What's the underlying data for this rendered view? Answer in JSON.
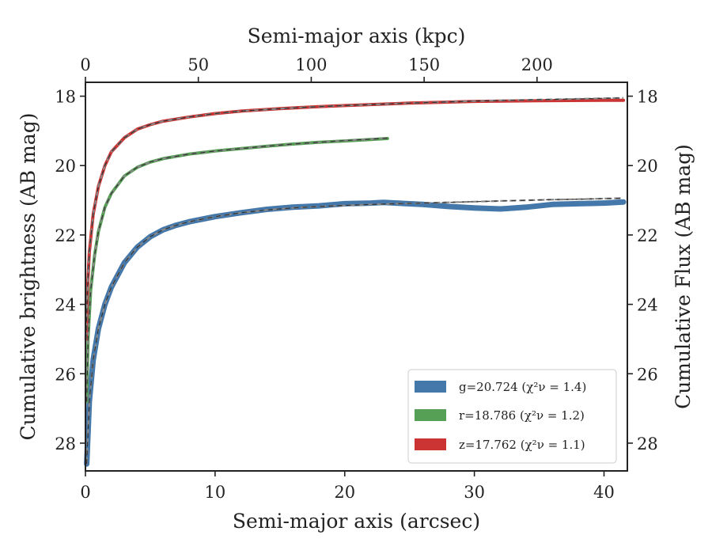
{
  "chart_data": {
    "type": "line",
    "xlabel": "Semi-major axis (arcsec)",
    "ylabel": "Cumulative brightness (AB mag)",
    "x2label": "Semi-major axis (kpc)",
    "y2label": "Cumulative Flux (AB mag)",
    "xlim": [
      0,
      41.8
    ],
    "ylim": [
      28.8,
      17.6
    ],
    "x2lim": [
      0,
      240
    ],
    "y_inverted": true,
    "xticks": [
      0,
      10,
      20,
      30,
      40
    ],
    "yticks": [
      18,
      20,
      22,
      24,
      26,
      28
    ],
    "x2ticks": [
      0,
      50,
      100,
      150,
      200
    ],
    "legend_position": "lower-right",
    "grid": false,
    "series": [
      {
        "name": "g=20.724",
        "chi_label": "χ²ν = 1.4",
        "color": "#4477AA",
        "band_width": 7,
        "x": [
          0.1,
          0.3,
          0.6,
          1.0,
          1.5,
          2.0,
          3.0,
          4.0,
          5.0,
          6.0,
          7.0,
          8.0,
          10.0,
          12.0,
          14.0,
          16.0,
          18.0,
          20.0,
          22.0,
          23.0,
          24.0,
          26.0,
          28.0,
          30.0,
          32.0,
          34.0,
          36.0,
          38.0,
          40.0,
          41.5
        ],
        "y": [
          28.6,
          26.8,
          25.6,
          24.7,
          24.0,
          23.5,
          22.8,
          22.35,
          22.05,
          21.85,
          21.72,
          21.62,
          21.47,
          21.36,
          21.26,
          21.2,
          21.16,
          21.1,
          21.08,
          21.06,
          21.08,
          21.12,
          21.18,
          21.22,
          21.25,
          21.2,
          21.12,
          21.1,
          21.08,
          21.05
        ]
      },
      {
        "name": "r=18.786",
        "chi_label": "χ²ν = 1.2",
        "color": "#55A055",
        "band_width": 4,
        "x": [
          0.1,
          0.2,
          0.4,
          0.7,
          1.0,
          1.5,
          2.0,
          3.0,
          4.0,
          5.0,
          6.0,
          8.0,
          10.0,
          12.0,
          14.0,
          16.0,
          18.0,
          20.0,
          22.0,
          23.3
        ],
        "y": [
          26.8,
          25.0,
          23.6,
          22.6,
          21.9,
          21.2,
          20.8,
          20.3,
          20.05,
          19.9,
          19.8,
          19.67,
          19.58,
          19.51,
          19.44,
          19.38,
          19.33,
          19.29,
          19.25,
          19.22
        ]
      },
      {
        "name": "z=17.762",
        "chi_label": "χ²ν = 1.1",
        "color": "#CC3333",
        "band_width": 4,
        "x": [
          0.05,
          0.15,
          0.3,
          0.6,
          1.0,
          1.5,
          2.0,
          3.0,
          4.0,
          5.0,
          6.0,
          8.0,
          10.0,
          12.0,
          15.0,
          18.0,
          20.0,
          25.0,
          30.0,
          35.0,
          40.0,
          41.5
        ],
        "y": [
          25.0,
          23.6,
          22.5,
          21.4,
          20.6,
          20.0,
          19.6,
          19.2,
          18.95,
          18.82,
          18.72,
          18.6,
          18.5,
          18.43,
          18.36,
          18.3,
          18.27,
          18.2,
          18.15,
          18.13,
          18.12,
          18.12
        ]
      }
    ],
    "models": [
      {
        "series": "g",
        "x": [
          0.1,
          0.3,
          0.6,
          1.0,
          1.5,
          2.0,
          3.0,
          4.0,
          5.0,
          6.0,
          7.0,
          8.0,
          10.0,
          12.0,
          14.0,
          16.0,
          18.0,
          20.0,
          22.0,
          24.0,
          26.0,
          28.0,
          30.0,
          32.0,
          34.0,
          36.0,
          38.0,
          40.0,
          41.5
        ],
        "y": [
          28.6,
          26.8,
          25.6,
          24.7,
          24.0,
          23.5,
          22.8,
          22.35,
          22.05,
          21.85,
          21.72,
          21.62,
          21.47,
          21.36,
          21.28,
          21.22,
          21.18,
          21.15,
          21.12,
          21.1,
          21.08,
          21.06,
          21.04,
          21.02,
          21.0,
          20.98,
          20.97,
          20.95,
          20.94
        ]
      },
      {
        "series": "r",
        "x": [
          0.1,
          0.2,
          0.4,
          0.7,
          1.0,
          1.5,
          2.0,
          3.0,
          4.0,
          5.0,
          6.0,
          8.0,
          10.0,
          12.0,
          14.0,
          16.0,
          18.0,
          20.0,
          22.0,
          23.3
        ],
        "y": [
          26.8,
          25.0,
          23.6,
          22.6,
          21.9,
          21.2,
          20.8,
          20.3,
          20.05,
          19.9,
          19.8,
          19.67,
          19.58,
          19.51,
          19.44,
          19.38,
          19.33,
          19.28,
          19.24,
          19.21
        ]
      },
      {
        "series": "z",
        "x": [
          0.05,
          0.15,
          0.3,
          0.6,
          1.0,
          1.5,
          2.0,
          3.0,
          4.0,
          5.0,
          6.0,
          8.0,
          10.0,
          12.0,
          15.0,
          18.0,
          20.0,
          25.0,
          30.0,
          35.0,
          40.0,
          41.5
        ],
        "y": [
          25.0,
          23.6,
          22.5,
          21.4,
          20.6,
          20.0,
          19.6,
          19.2,
          18.95,
          18.82,
          18.72,
          18.6,
          18.5,
          18.43,
          18.36,
          18.3,
          18.27,
          18.2,
          18.14,
          18.1,
          18.06,
          18.05
        ]
      }
    ],
    "model_style": {
      "color_outer": "#888888",
      "color_inner": "#333333"
    }
  }
}
